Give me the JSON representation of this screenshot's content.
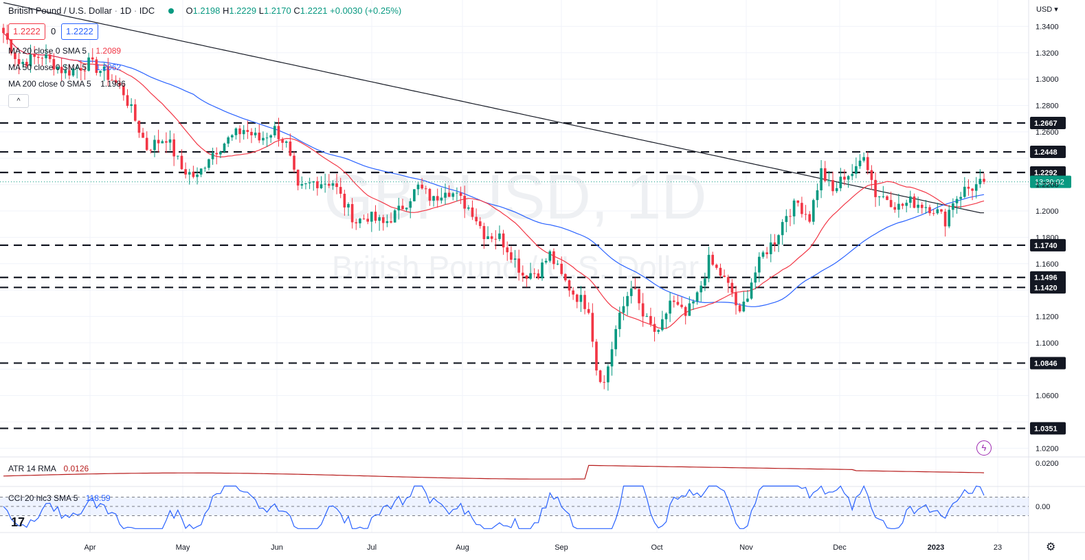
{
  "header": {
    "symbol": "British Pound / U.S. Dollar",
    "interval": "1D",
    "source": "IDC",
    "open_label": "O",
    "open": "1.2198",
    "high_label": "H",
    "high": "1.2229",
    "low_label": "L",
    "low": "1.2170",
    "close_label": "C",
    "close": "1.2221",
    "change": "+0.0030 (+0.25%)",
    "bid": "1.2222",
    "spread": "0",
    "ask": "1.2222"
  },
  "legend": {
    "ma20": {
      "label": "MA 20 close 0 SMA 5",
      "value": "1.2089",
      "color": "#f23645"
    },
    "ma50": {
      "label": "MA 50 close 0 SMA 5",
      "value": "1.2062",
      "color": "#2962ff"
    },
    "ma200": {
      "label": "MA 200 close 0 SMA 5",
      "value": "1.1986",
      "color": "#131722"
    },
    "collapse": "^"
  },
  "watermark": {
    "line1": "GBPUSD, 1D",
    "line2": "British Pound / U.S. Dollar"
  },
  "indicators": {
    "atr": {
      "label": "ATR 14 RMA",
      "value": "0.0126",
      "axis_tick": "0.0200",
      "color": "#b71c1c"
    },
    "cci": {
      "label": "CCI 20 hlc3 SMA 5",
      "value": "118.59",
      "axis_tick": "0.00",
      "color": "#2962ff"
    }
  },
  "axis": {
    "currency": "USD",
    "countdown": "13:30:02",
    "gear_icon": "gear-icon",
    "flash_icon": "lightning-icon",
    "logo": "tradingview-logo"
  },
  "chart_data": {
    "type": "candlestick",
    "title": "British Pound / U.S. Dollar · 1D · IDC",
    "ylim": [
      1.015,
      1.36
    ],
    "y_ticks": [
      1.34,
      1.32,
      1.3,
      1.28,
      1.26,
      1.24,
      1.22,
      1.2,
      1.18,
      1.16,
      1.14,
      1.12,
      1.1,
      1.08,
      1.06,
      1.04,
      1.02
    ],
    "x_ticks": [
      "Apr",
      "May",
      "Jun",
      "Jul",
      "Aug",
      "Sep",
      "Oct",
      "Nov",
      "Dec",
      "2023",
      "23"
    ],
    "horizontal_levels": [
      1.2667,
      1.2448,
      1.2292,
      1.174,
      1.1496,
      1.142,
      1.0846,
      1.0351
    ],
    "last_price": 1.2221,
    "price_path": [
      [
        0,
        1.335
      ],
      [
        4,
        1.312
      ],
      [
        10,
        1.318
      ],
      [
        16,
        1.305
      ],
      [
        22,
        1.312
      ],
      [
        26,
        1.305
      ],
      [
        28,
        1.3
      ],
      [
        31,
        1.29
      ],
      [
        35,
        1.262
      ],
      [
        37,
        1.248
      ],
      [
        42,
        1.256
      ],
      [
        46,
        1.232
      ],
      [
        50,
        1.225
      ],
      [
        53,
        1.242
      ],
      [
        57,
        1.252
      ],
      [
        62,
        1.262
      ],
      [
        66,
        1.254
      ],
      [
        70,
        1.262
      ],
      [
        73,
        1.25
      ],
      [
        76,
        1.215
      ],
      [
        80,
        1.222
      ],
      [
        85,
        1.222
      ],
      [
        88,
        1.205
      ],
      [
        91,
        1.192
      ],
      [
        94,
        1.196
      ],
      [
        98,
        1.19
      ],
      [
        102,
        1.2
      ],
      [
        107,
        1.218
      ],
      [
        111,
        1.208
      ],
      [
        114,
        1.218
      ],
      [
        118,
        1.208
      ],
      [
        121,
        1.2
      ],
      [
        124,
        1.183
      ],
      [
        128,
        1.18
      ],
      [
        131,
        1.168
      ],
      [
        134,
        1.152
      ],
      [
        138,
        1.154
      ],
      [
        141,
        1.167
      ],
      [
        144,
        1.15
      ],
      [
        147,
        1.138
      ],
      [
        151,
        1.127
      ],
      [
        153,
        1.081
      ],
      [
        155,
        1.069
      ],
      [
        158,
        1.11
      ],
      [
        162,
        1.145
      ],
      [
        165,
        1.12
      ],
      [
        169,
        1.105
      ],
      [
        172,
        1.132
      ],
      [
        176,
        1.12
      ],
      [
        179,
        1.135
      ],
      [
        182,
        1.162
      ],
      [
        185,
        1.152
      ],
      [
        188,
        1.138
      ],
      [
        190,
        1.12
      ],
      [
        193,
        1.147
      ],
      [
        196,
        1.167
      ],
      [
        199,
        1.178
      ],
      [
        202,
        1.198
      ],
      [
        205,
        1.206
      ],
      [
        208,
        1.195
      ],
      [
        211,
        1.23
      ],
      [
        214,
        1.214
      ],
      [
        217,
        1.227
      ],
      [
        220,
        1.23
      ],
      [
        222,
        1.245
      ],
      [
        225,
        1.213
      ],
      [
        228,
        1.21
      ],
      [
        231,
        1.203
      ],
      [
        234,
        1.207
      ],
      [
        237,
        1.205
      ],
      [
        240,
        1.202
      ],
      [
        243,
        1.193
      ],
      [
        245,
        1.208
      ],
      [
        248,
        1.216
      ],
      [
        251,
        1.219
      ],
      [
        253,
        1.222
      ]
    ],
    "series": [
      {
        "name": "MA 20 close 0 SMA 5",
        "last_value": 1.2089
      },
      {
        "name": "MA 50 close 0 SMA 5",
        "last_value": 1.2062
      },
      {
        "name": "MA 200 close 0 SMA 5",
        "last_value": 1.1986
      }
    ],
    "atr_last": 0.0126,
    "cci_last": 118.59
  }
}
